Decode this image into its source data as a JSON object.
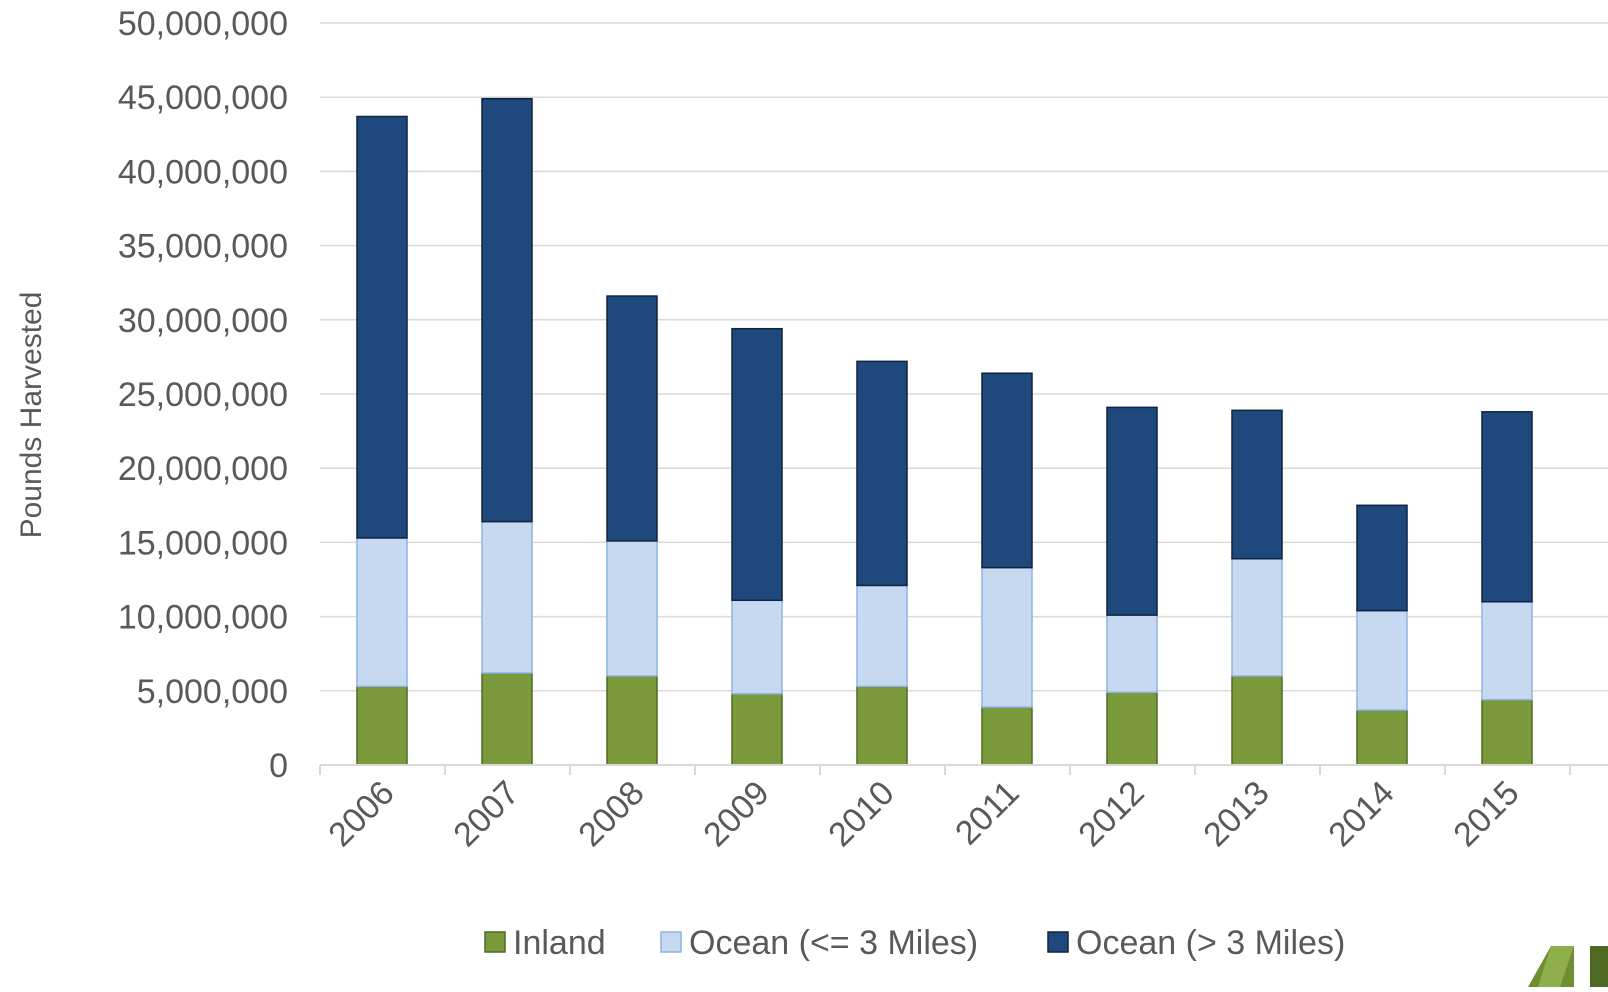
{
  "chart_data": {
    "type": "bar",
    "stacked": true,
    "title": "",
    "xlabel": "",
    "ylabel": "Pounds Harvested",
    "ylim": [
      0,
      50000000
    ],
    "yticks": [
      "0",
      "5,000,000",
      "10,000,000",
      "15,000,000",
      "20,000,000",
      "25,000,000",
      "30,000,000",
      "35,000,000",
      "40,000,000",
      "45,000,000",
      "50,000,000"
    ],
    "categories": [
      "2006",
      "2007",
      "2008",
      "2009",
      "2010",
      "2011",
      "2012",
      "2013",
      "2014",
      "2015"
    ],
    "series": [
      {
        "name": "Inland",
        "color": "#7A9A3C",
        "stroke": "#4E6A22",
        "values": [
          5300000,
          6200000,
          6000000,
          4800000,
          5300000,
          3900000,
          4900000,
          6000000,
          3700000,
          4400000
        ]
      },
      {
        "name": "Ocean (<= 3 Miles)",
        "color": "#C6D9F0",
        "stroke": "#8EB4E3",
        "values": [
          10000000,
          10200000,
          9100000,
          6300000,
          6800000,
          9400000,
          5200000,
          7900000,
          6700000,
          6600000
        ]
      },
      {
        "name": "Ocean (> 3 Miles)",
        "color": "#1F497D",
        "stroke": "#0F243E",
        "values": [
          28400000,
          28500000,
          16500000,
          18300000,
          15100000,
          13100000,
          14000000,
          10000000,
          7100000,
          12800000
        ]
      }
    ],
    "grid": true,
    "legend_position": "bottom"
  }
}
